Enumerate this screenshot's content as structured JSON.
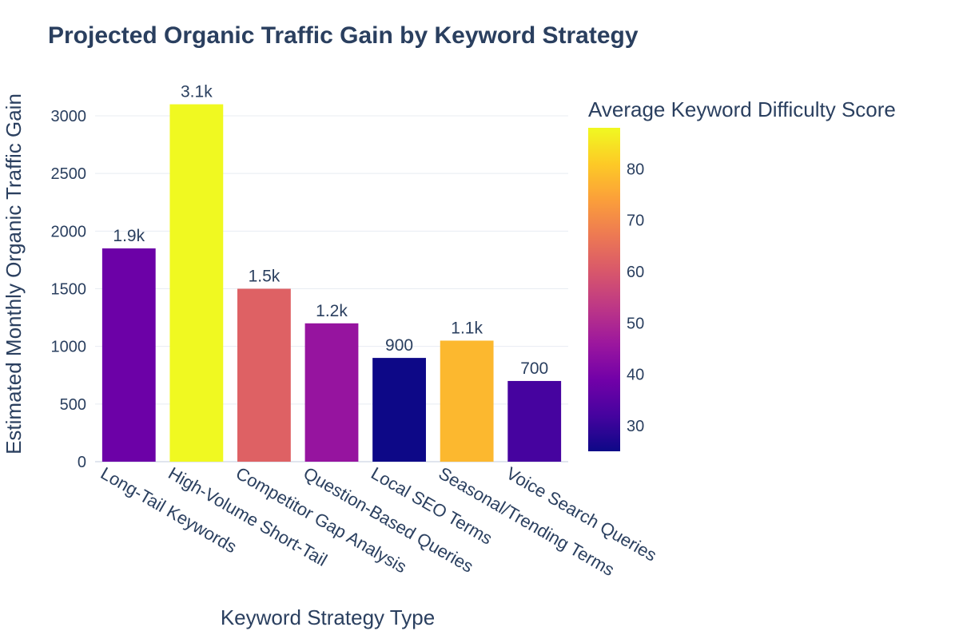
{
  "chart_data": {
    "type": "bar",
    "title": "Projected Organic Traffic Gain by Keyword Strategy",
    "xlabel": "Keyword Strategy Type",
    "ylabel": "Estimated Monthly Organic Traffic Gain",
    "categories": [
      "Long-Tail Keywords",
      "High-Volume Short-Tail",
      "Competitor Gap Analysis",
      "Question-Based Queries",
      "Local SEO Terms",
      "Seasonal/Trending Terms",
      "Voice Search Queries"
    ],
    "values": [
      1850,
      3100,
      1500,
      1200,
      900,
      1050,
      700
    ],
    "value_labels": [
      "1.9k",
      "3.1k",
      "1.5k",
      "1.2k",
      "900",
      "1.1k",
      "700"
    ],
    "color_values": [
      38,
      88,
      62,
      45,
      25,
      78,
      32
    ],
    "ylim": [
      0,
      3250
    ],
    "yticks": [
      0,
      500,
      1000,
      1500,
      2000,
      2500,
      3000
    ],
    "grid": true,
    "colorbar": {
      "title": "Average Keyword Difficulty Score",
      "range": [
        25,
        88
      ],
      "ticks": [
        30,
        40,
        50,
        60,
        70,
        80
      ],
      "colorscale": [
        "#0d0887",
        "#46039f",
        "#7201a8",
        "#9c179e",
        "#bd3786",
        "#d8576b",
        "#ed7953",
        "#fb9f3a",
        "#fdca26",
        "#f0f921"
      ]
    }
  }
}
